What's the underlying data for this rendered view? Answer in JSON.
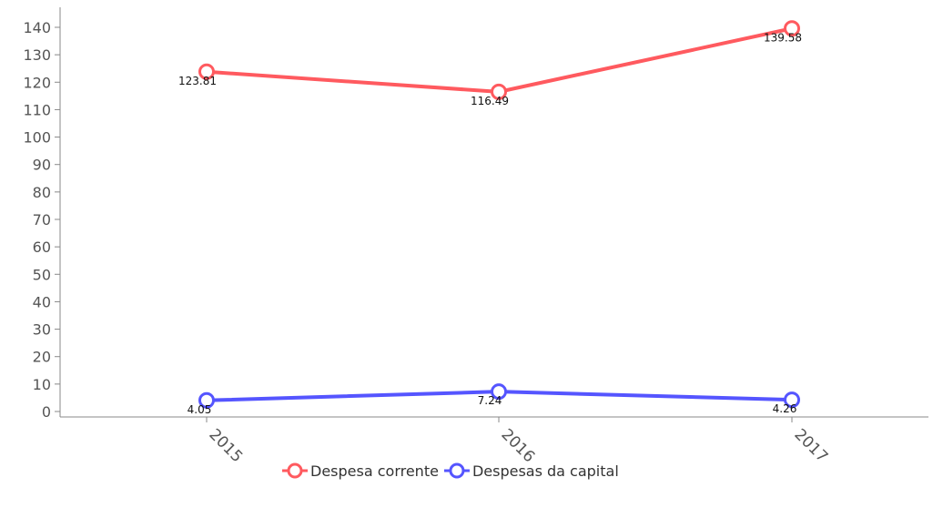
{
  "chart_data": {
    "type": "line",
    "categories": [
      "2015",
      "2016",
      "2017"
    ],
    "series": [
      {
        "name": "Despesa corrente",
        "values": [
          123.81,
          116.49,
          139.58
        ],
        "labels": [
          "123.81",
          "116.49",
          "139.58"
        ],
        "color": "#ff5a5f"
      },
      {
        "name": "Despesas da capital",
        "values": [
          4.05,
          7.24,
          4.26
        ],
        "labels": [
          "4.05",
          "7.24",
          "4.26"
        ],
        "color": "#5555ff"
      }
    ],
    "y_ticks": [
      "0",
      "10",
      "20",
      "30",
      "40",
      "50",
      "60",
      "70",
      "80",
      "90",
      "100",
      "110",
      "120",
      "130",
      "140"
    ],
    "ylim": [
      0,
      140
    ],
    "grid": false,
    "legend_position": "bottom-center"
  }
}
